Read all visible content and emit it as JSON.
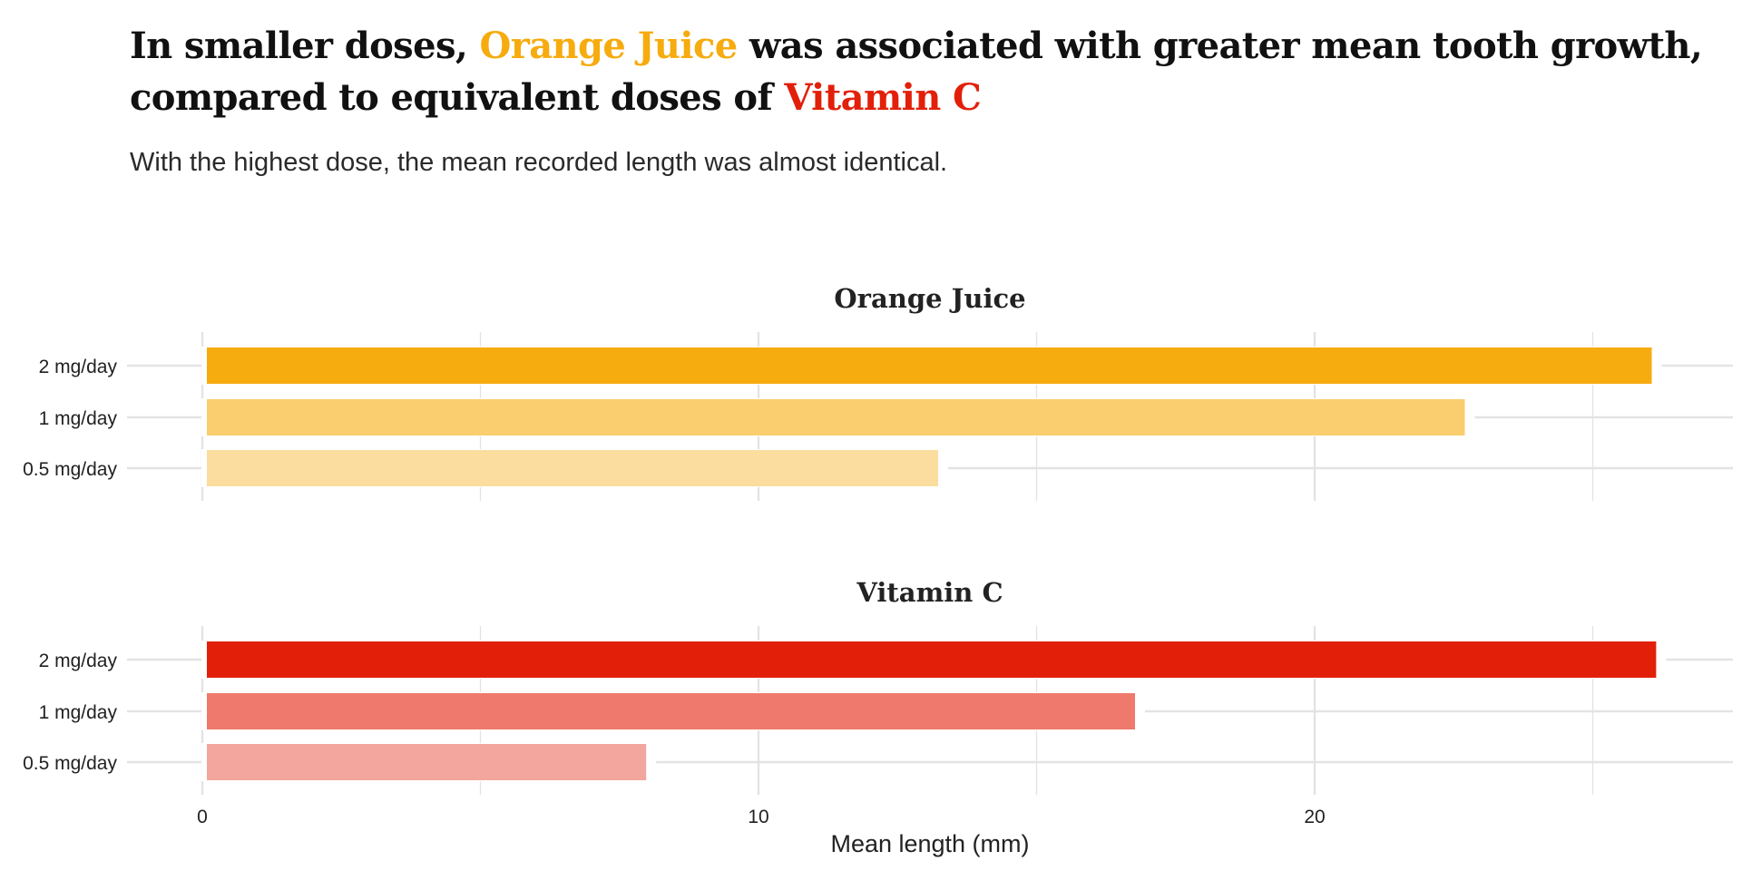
{
  "headline": {
    "part1": "In smaller doses, ",
    "highlight1": "Orange Juice",
    "part2": " was associated with greater mean tooth growth, compared to equivalent doses of ",
    "highlight2": "Vitamin C"
  },
  "subtitle": "With the highest dose, the mean recorded length was almost identical.",
  "colors": {
    "orange_juice": "#F6AB0E",
    "vitamin_c": "#E2200A",
    "text": "#111111",
    "grid": "#e3e3e3"
  },
  "chart_data": {
    "type": "bar",
    "orientation": "horizontal",
    "categories": [
      "2 mg/day",
      "1 mg/day",
      "0.5 mg/day"
    ],
    "xlabel": "Mean length (mm)",
    "xticks": [
      0,
      10,
      20
    ],
    "xlim": [
      0,
      27.5
    ],
    "grid": true,
    "panels": [
      {
        "title": "Orange Juice",
        "color": "#F6AB0E",
        "opacities": [
          1,
          0.6,
          0.4
        ],
        "values": [
          26.06,
          22.7,
          13.23
        ]
      },
      {
        "title": "Vitamin C",
        "color": "#E2200A",
        "opacities": [
          1,
          0.6,
          0.4
        ],
        "values": [
          26.14,
          16.77,
          7.98
        ]
      }
    ]
  }
}
